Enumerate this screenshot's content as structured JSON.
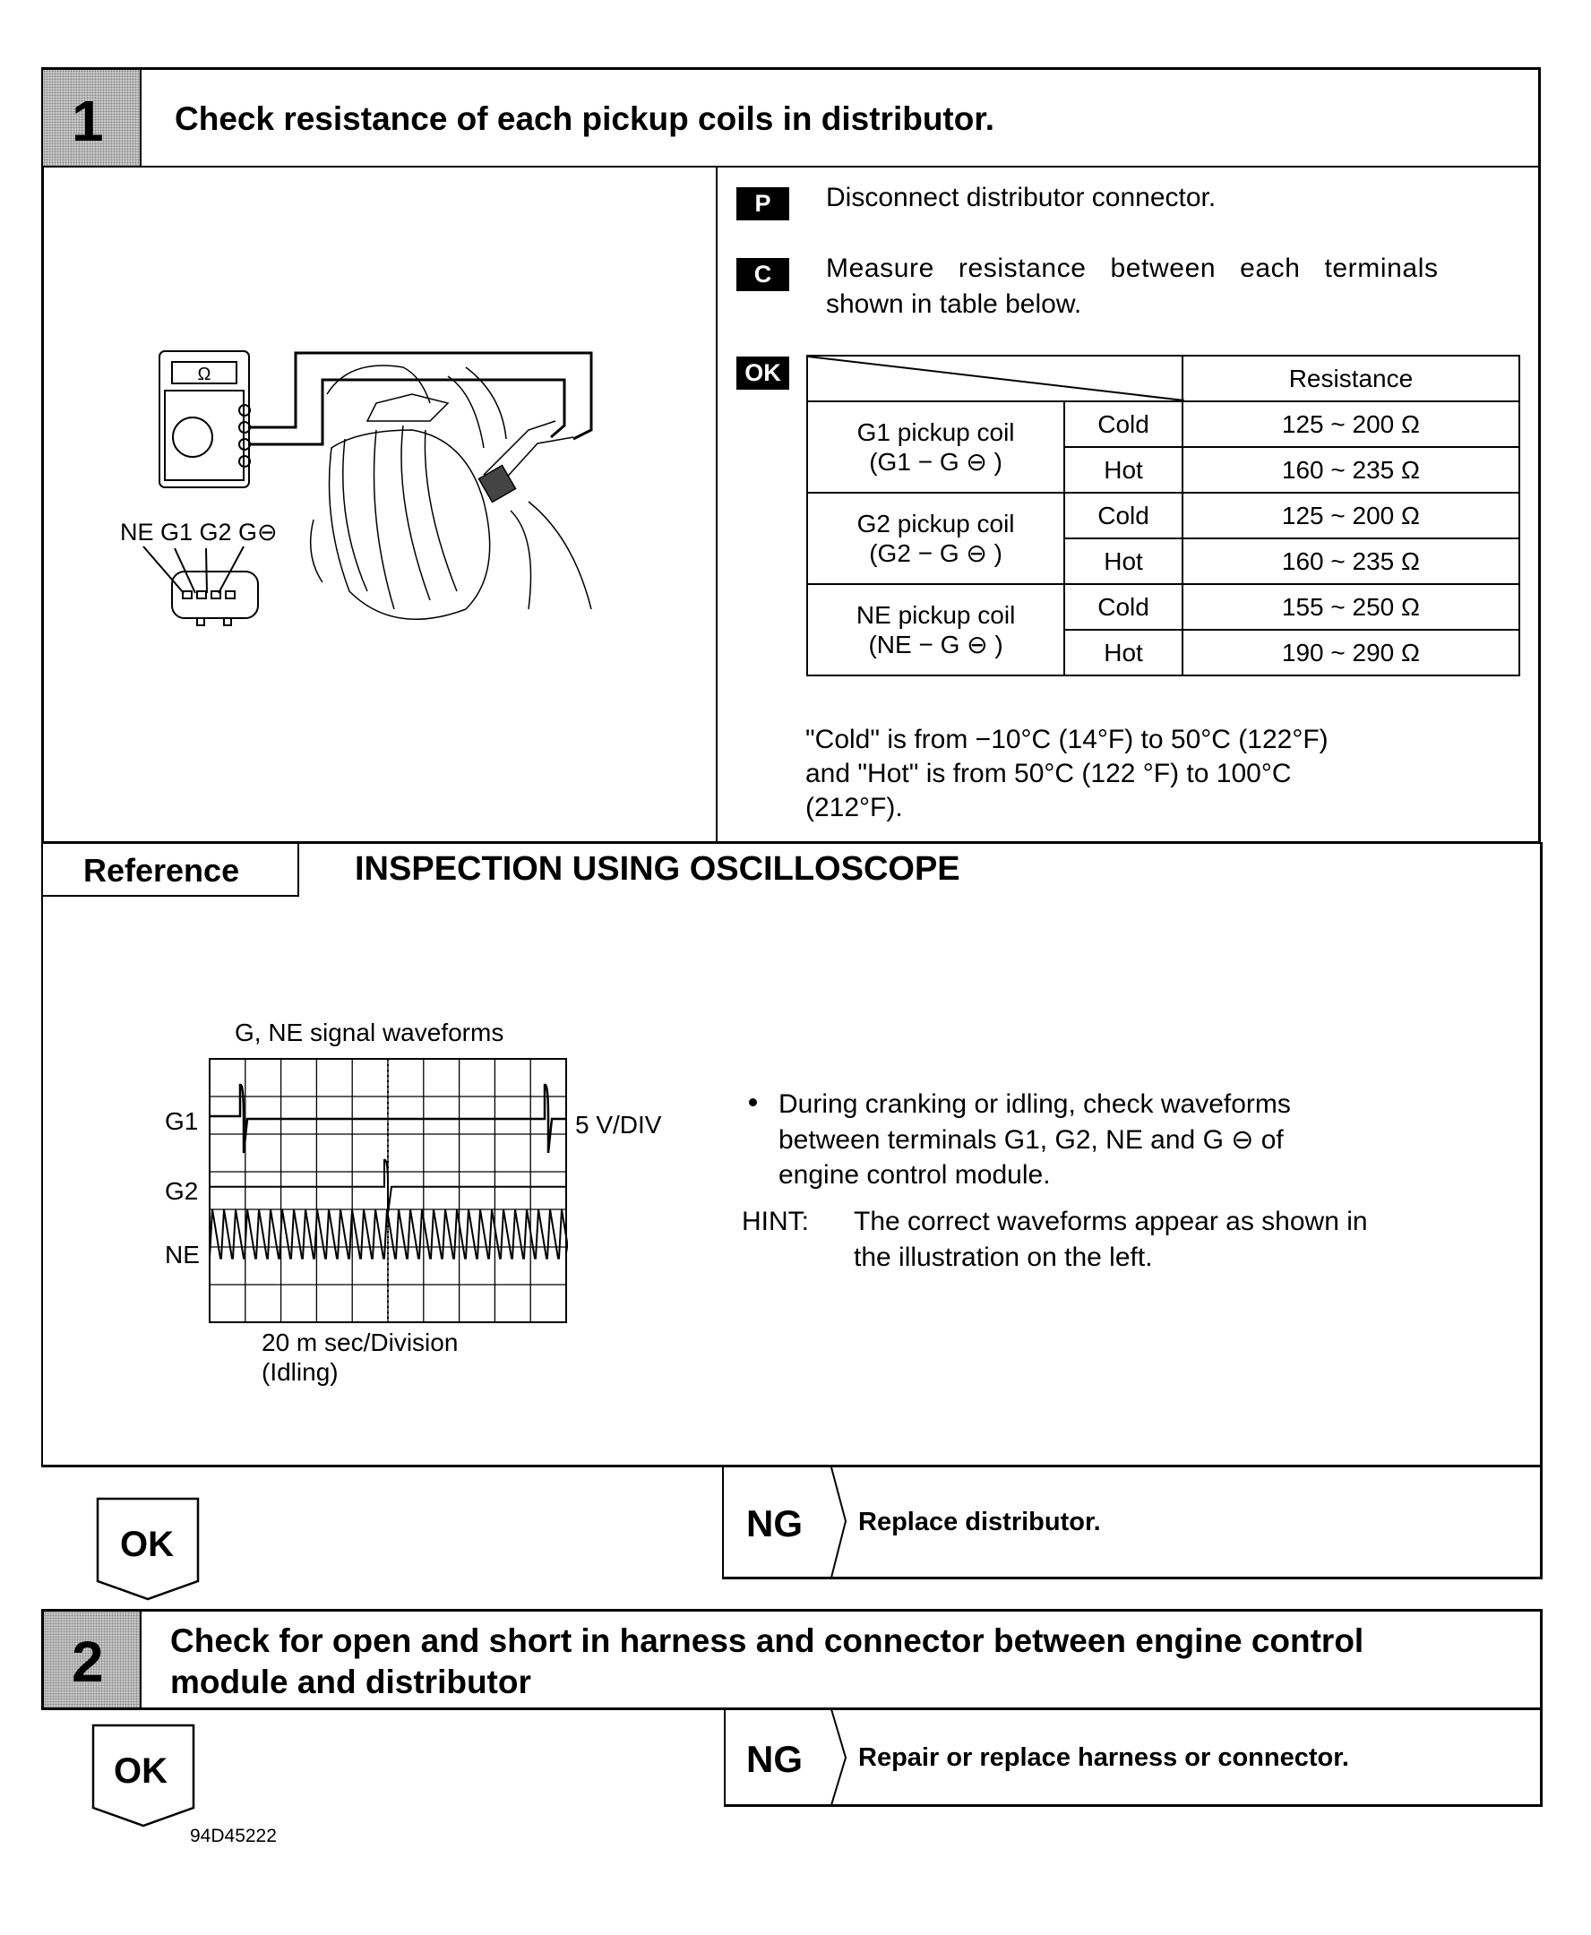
{
  "step1": {
    "number": "1",
    "title": "Check resistance of each pickup coils in distributor.",
    "illustration": {
      "meter_symbol": "Ω",
      "connector_labels": "NE G1 G2 G⊖"
    },
    "instructions": [
      {
        "badge": "P",
        "text": "Disconnect distributor connector."
      },
      {
        "badge": "C",
        "text_line1": "Measure resistance between each terminals",
        "text_line2": "shown in table below."
      }
    ],
    "ok_badge": "OK",
    "table": {
      "header": "Resistance",
      "groups": [
        {
          "name": "G1 pickup coil",
          "terminals": "(G1 − G ⊖ )",
          "rows": [
            {
              "cond": "Cold",
              "value": "125 ~ 200 Ω"
            },
            {
              "cond": "Hot",
              "value": "160 ~ 235 Ω"
            }
          ]
        },
        {
          "name": "G2 pickup coil",
          "terminals": "(G2 − G ⊖ )",
          "rows": [
            {
              "cond": "Cold",
              "value": "125 ~ 200 Ω"
            },
            {
              "cond": "Hot",
              "value": "160 ~ 235 Ω"
            }
          ]
        },
        {
          "name": "NE pickup coil",
          "terminals": "(NE − G ⊖ )",
          "rows": [
            {
              "cond": "Cold",
              "value": "155 ~ 250 Ω"
            },
            {
              "cond": "Hot",
              "value": "190 ~ 290 Ω"
            }
          ]
        }
      ]
    },
    "note_lines": [
      "\"Cold\" is from −10°C (14°F) to 50°C (122°F)",
      "and \"Hot\" is from 50°C (122 °F) to 100°C",
      "(212°F)."
    ]
  },
  "reference": {
    "label": "Reference",
    "title": "INSPECTION USING OSCILLOSCOPE",
    "scope": {
      "title": "G, NE signal waveforms",
      "channels": [
        "G1",
        "G2",
        "NE"
      ],
      "vdiv": "5 V/DIV",
      "timebase": "20 m sec/Division",
      "condition": "(Idling)"
    },
    "bullet_lines": [
      "During cranking or idling, check waveforms",
      "between terminals G1, G2, NE and G ⊖ of",
      "engine control module."
    ],
    "hint_label": "HINT:",
    "hint_lines": [
      "The correct waveforms appear as shown in",
      "the illustration on the left."
    ]
  },
  "result1": {
    "ok": "OK",
    "ng": "NG",
    "ng_action": "Replace distributor."
  },
  "step2": {
    "number": "2",
    "title_line1": "Check for open and short in harness and connector between engine control",
    "title_line2": "module and distributor"
  },
  "result2": {
    "ok": "OK",
    "ng": "NG",
    "ng_action": "Repair or replace harness or connector."
  },
  "figure_code": "94D45222"
}
